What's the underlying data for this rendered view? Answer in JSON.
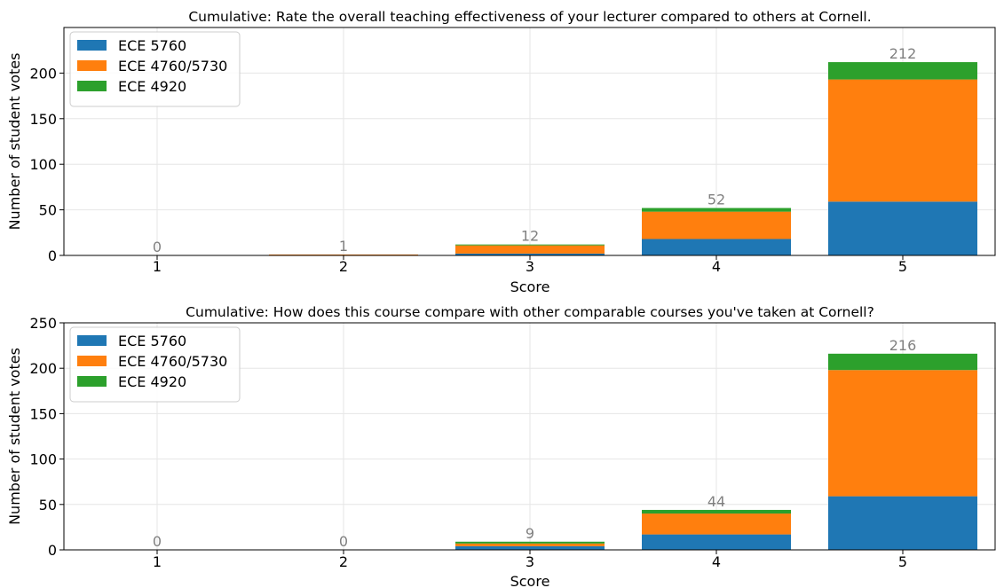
{
  "chart_data": [
    {
      "type": "bar",
      "stacked": true,
      "title": "Cumulative: Rate the overall teaching effectiveness of your lecturer compared to others at Cornell.",
      "xlabel": "Score",
      "ylabel": "Number of student votes",
      "categories": [
        "1",
        "2",
        "3",
        "4",
        "5"
      ],
      "series": [
        {
          "name": "ECE 5760",
          "color": "#1f77b4",
          "values": [
            0,
            0,
            2,
            18,
            59
          ]
        },
        {
          "name": "ECE 4760/5730",
          "color": "#ff7f0e",
          "values": [
            0,
            1,
            9,
            30,
            134
          ]
        },
        {
          "name": "ECE 4920",
          "color": "#2ca02c",
          "values": [
            0,
            0,
            1,
            4,
            19
          ]
        }
      ],
      "totals": [
        0,
        1,
        12,
        52,
        212
      ],
      "ylim": [
        0,
        250
      ],
      "yticks": [
        0,
        50,
        100,
        150,
        200
      ],
      "grid": true,
      "legend_position": "top-left"
    },
    {
      "type": "bar",
      "stacked": true,
      "title": "Cumulative: How does this course compare with other comparable courses you've taken at Cornell?",
      "xlabel": "Score",
      "ylabel": "Number of student votes",
      "categories": [
        "1",
        "2",
        "3",
        "4",
        "5"
      ],
      "series": [
        {
          "name": "ECE 5760",
          "color": "#1f77b4",
          "values": [
            0,
            0,
            4,
            17,
            59
          ]
        },
        {
          "name": "ECE 4760/5730",
          "color": "#ff7f0e",
          "values": [
            0,
            0,
            3,
            23,
            139
          ]
        },
        {
          "name": "ECE 4920",
          "color": "#2ca02c",
          "values": [
            0,
            0,
            2,
            4,
            18
          ]
        }
      ],
      "totals": [
        0,
        0,
        9,
        44,
        216
      ],
      "ylim": [
        0,
        250
      ],
      "yticks": [
        0,
        50,
        100,
        150,
        200,
        250
      ],
      "grid": true,
      "legend_position": "top-left"
    }
  ]
}
